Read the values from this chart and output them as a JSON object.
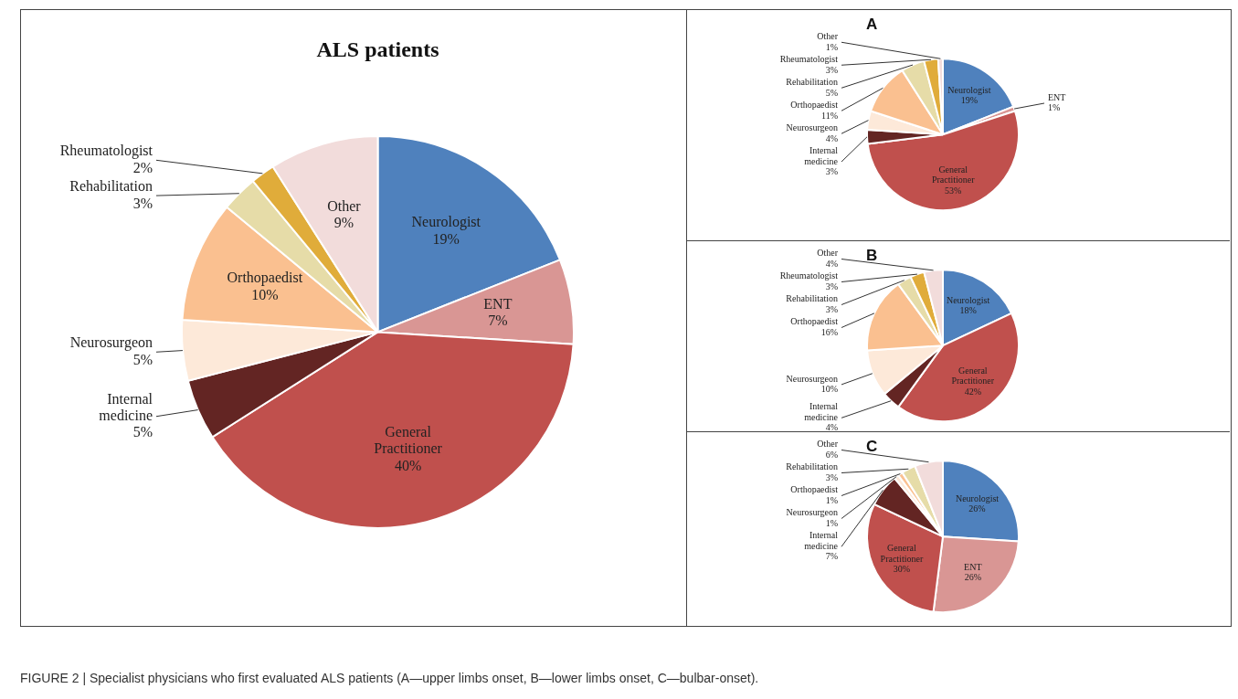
{
  "chart_data": [
    {
      "type": "pie",
      "title": "ALS patients",
      "categories": [
        "Neurologist",
        "ENT",
        "General Practitioner",
        "Internal medicine",
        "Neurosurgeon",
        "Orthopaedist",
        "Rehabilitation",
        "Rheumatologist",
        "Other"
      ],
      "values": [
        19,
        7,
        40,
        5,
        5,
        10,
        3,
        2,
        9
      ],
      "value_labels": [
        "19%",
        "7%",
        "40%",
        "5%",
        "5%",
        "10%",
        "3%",
        "2%",
        "9%"
      ],
      "colors": [
        "#4f81bd",
        "#d99694",
        "#c0504d",
        "#632523",
        "#fde9d9",
        "#fac090",
        "#e6dca8",
        "#e0ac3a",
        "#f2dcdb"
      ],
      "annotations": [
        "FIGURE 2 | Specialist physicians who first evaluated ALS patients (A—upper limbs onset, B—lower limbs onset, C—bulbar-onset)."
      ]
    },
    {
      "type": "pie",
      "title": "A",
      "categories": [
        "Neurologist",
        "ENT",
        "General Practitioner",
        "Internal medicine",
        "Neurosurgeon",
        "Orthopaedist",
        "Rehabilitation",
        "Rheumatologist",
        "Other"
      ],
      "values": [
        19,
        1,
        53,
        3,
        4,
        11,
        5,
        3,
        1
      ],
      "value_labels": [
        "19%",
        "1%",
        "53%",
        "3%",
        "4%",
        "11%",
        "5%",
        "3%",
        "1%"
      ],
      "colors": [
        "#4f81bd",
        "#d99694",
        "#c0504d",
        "#632523",
        "#fde9d9",
        "#fac090",
        "#e6dca8",
        "#e0ac3a",
        "#f2dcdb"
      ]
    },
    {
      "type": "pie",
      "title": "B",
      "categories": [
        "Neurologist",
        "General Practitioner",
        "Internal medicine",
        "Neurosurgeon",
        "Orthopaedist",
        "Rehabilitation",
        "Rheumatologist",
        "Other"
      ],
      "values": [
        18,
        42,
        4,
        10,
        16,
        3,
        3,
        4
      ],
      "value_labels": [
        "18%",
        "42%",
        "4%",
        "10%",
        "16%",
        "3%",
        "3%",
        "4%"
      ],
      "colors": [
        "#4f81bd",
        "#c0504d",
        "#632523",
        "#fde9d9",
        "#fac090",
        "#e6dca8",
        "#e0ac3a",
        "#f2dcdb"
      ]
    },
    {
      "type": "pie",
      "title": "C",
      "categories": [
        "Neurologist",
        "ENT",
        "General Practitioner",
        "Internal medicine",
        "Neurosurgeon",
        "Orthopaedist",
        "Rehabilitation",
        "Other"
      ],
      "values": [
        26,
        26,
        30,
        7,
        1,
        1,
        3,
        6
      ],
      "value_labels": [
        "26%",
        "26%",
        "30%",
        "7%",
        "1%",
        "1%",
        "3%",
        "6%"
      ],
      "colors": [
        "#4f81bd",
        "#d99694",
        "#c0504d",
        "#632523",
        "#fde9d9",
        "#fac090",
        "#e6dca8",
        "#f2dcdb"
      ]
    }
  ]
}
